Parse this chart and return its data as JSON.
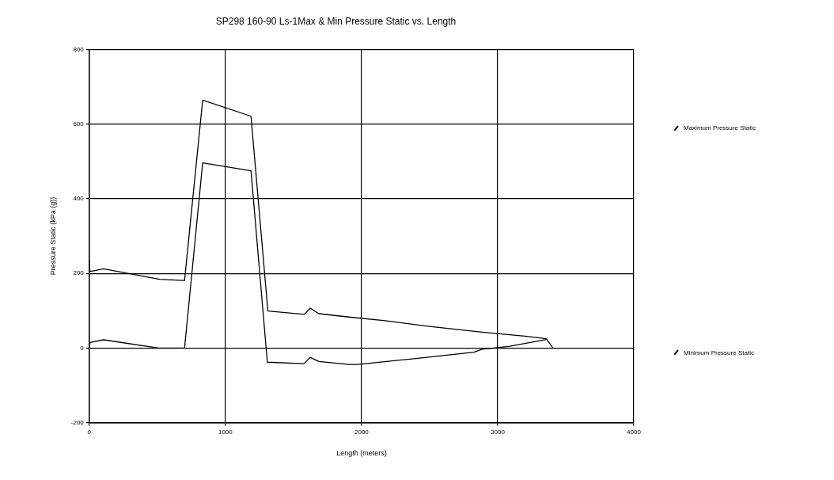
{
  "chart_data": {
    "type": "line",
    "title": "SP298 160-90 Ls-1Max & Min Pressure Static vs. Length",
    "xlabel": "Length (meters)",
    "ylabel": "Pressure Static (kPa (g))",
    "xlim": [
      0,
      4000
    ],
    "xticks": [
      0,
      1000,
      2000,
      3000,
      4000
    ],
    "ylim": [
      -200,
      800
    ],
    "yticks": [
      -200,
      0,
      200,
      400,
      600,
      800
    ],
    "grid": true,
    "legend": "right",
    "marker": "none",
    "line_style": "solid",
    "series": [
      {
        "name": "Maximum Pressure Static",
        "color": "#000000",
        "x": [
          0,
          5,
          105,
          517,
          700,
          833,
          1188,
          1312,
          1580,
          1623,
          1686,
          1906,
          2174,
          2500,
          2900,
          3200,
          3357,
          3406
        ],
        "values": [
          237,
          205,
          212,
          184,
          181,
          664,
          621,
          99,
          90,
          107,
          92,
          83,
          73,
          58,
          42,
          32,
          25,
          0
        ]
      },
      {
        "name": "Minimum Pressure Static",
        "color": "#000000",
        "x": [
          0,
          5,
          105,
          508,
          700,
          833,
          1188,
          1308,
          1577,
          1623,
          1686,
          1906,
          1973,
          2400,
          2827,
          2886,
          3082,
          3357
        ],
        "values": [
          0,
          15,
          22,
          0,
          0,
          496,
          475,
          -38,
          -42,
          -25,
          -36,
          -44,
          -44,
          -28,
          -11,
          -3,
          4,
          23
        ]
      }
    ]
  }
}
